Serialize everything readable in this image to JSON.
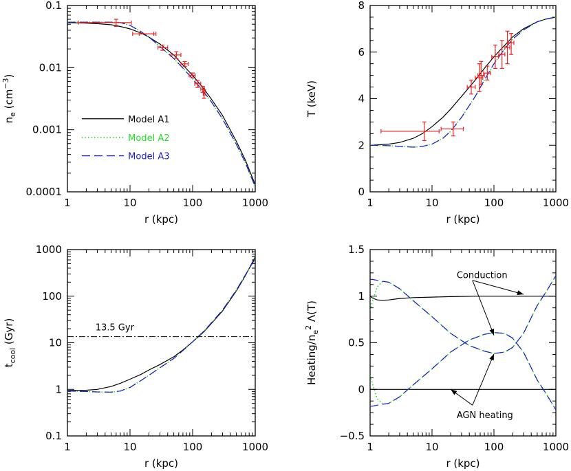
{
  "colors": {
    "model_a1": "#000000",
    "model_a2": "#22dd22",
    "model_a3": "#1a1acc",
    "data_points": "#ee2222"
  },
  "chart_data": [
    {
      "id": "ne",
      "type": "line",
      "xlabel": "r (kpc)",
      "ylabel": "n_e (cm^-3)",
      "xscale": "log",
      "yscale": "log",
      "xlim": [
        1,
        1000
      ],
      "ylim": [
        0.0001,
        0.1
      ],
      "xticks": [
        "1",
        "10",
        "100",
        "1000"
      ],
      "yticks": [
        "0.0001",
        "0.001",
        "0.01",
        "0.1"
      ],
      "legend": {
        "position": "lower-left",
        "entries": [
          "Model A1",
          "Model A2",
          "Model A3"
        ]
      },
      "series": [
        {
          "name": "Model A1",
          "x": [
            1,
            2,
            3,
            5,
            7,
            10,
            15,
            20,
            30,
            50,
            70,
            100,
            150,
            200,
            300,
            500,
            700,
            1000
          ],
          "y": [
            0.053,
            0.052,
            0.051,
            0.049,
            0.046,
            0.042,
            0.036,
            0.031,
            0.024,
            0.016,
            0.011,
            0.0075,
            0.0046,
            0.0031,
            0.0017,
            0.00065,
            0.00032,
            0.00013
          ]
        },
        {
          "name": "Model A2",
          "x": [
            1,
            2,
            3,
            5,
            7,
            10,
            15,
            20,
            30,
            50,
            70,
            100,
            150,
            200,
            300,
            500,
            700,
            1000
          ],
          "y": [
            0.054,
            0.054,
            0.054,
            0.054,
            0.053,
            0.048,
            0.038,
            0.031,
            0.022,
            0.014,
            0.0098,
            0.0066,
            0.0041,
            0.0028,
            0.0015,
            0.00058,
            0.00029,
            0.00012
          ]
        },
        {
          "name": "Model A3",
          "x": [
            1,
            2,
            3,
            5,
            7,
            10,
            15,
            20,
            30,
            50,
            70,
            100,
            150,
            200,
            300,
            500,
            700,
            1000
          ],
          "y": [
            0.054,
            0.054,
            0.054,
            0.054,
            0.053,
            0.048,
            0.038,
            0.031,
            0.022,
            0.014,
            0.0098,
            0.0066,
            0.0041,
            0.0028,
            0.0015,
            0.00058,
            0.00029,
            0.00012
          ]
        }
      ],
      "points": [
        {
          "x": 3.5,
          "xlo": 1.5,
          "xhi": 10.5,
          "y": 0.053,
          "ylo": 0.053,
          "yhi": 0.053
        },
        {
          "x": 6,
          "xlo": 6,
          "xhi": 6,
          "y": 0.053,
          "ylo": 0.046,
          "yhi": 0.06
        },
        {
          "x": 17,
          "xlo": 11,
          "xhi": 26,
          "y": 0.035,
          "ylo": 0.035,
          "yhi": 0.035
        },
        {
          "x": 20,
          "xlo": 14,
          "xhi": 24,
          "y": 0.035,
          "ylo": 0.035,
          "yhi": 0.035
        },
        {
          "x": 33,
          "xlo": 28,
          "xhi": 40,
          "y": 0.021,
          "ylo": 0.019,
          "yhi": 0.023
        },
        {
          "x": 55,
          "xlo": 45,
          "xhi": 65,
          "y": 0.016,
          "ylo": 0.014,
          "yhi": 0.018
        },
        {
          "x": 75,
          "xlo": 65,
          "xhi": 85,
          "y": 0.0115,
          "ylo": 0.0105,
          "yhi": 0.0125
        },
        {
          "x": 100,
          "xlo": 88,
          "xhi": 110,
          "y": 0.0075,
          "ylo": 0.0068,
          "yhi": 0.0082
        },
        {
          "x": 120,
          "xlo": 108,
          "xhi": 135,
          "y": 0.0055,
          "ylo": 0.0048,
          "yhi": 0.0062
        },
        {
          "x": 145,
          "xlo": 135,
          "xhi": 155,
          "y": 0.0045,
          "ylo": 0.004,
          "yhi": 0.005
        },
        {
          "x": 152,
          "xlo": 148,
          "xhi": 158,
          "y": 0.0038,
          "ylo": 0.0032,
          "yhi": 0.0044
        }
      ]
    },
    {
      "id": "temperature",
      "type": "line",
      "xlabel": "r (kpc)",
      "ylabel": "T (keV)",
      "xscale": "log",
      "yscale": "linear",
      "xlim": [
        1,
        1000
      ],
      "ylim": [
        0,
        8
      ],
      "xticks": [
        "1",
        "10",
        "100",
        "1000"
      ],
      "yticks": [
        "0",
        "2",
        "4",
        "6",
        "8"
      ],
      "series": [
        {
          "name": "Model A1",
          "x": [
            1,
            2,
            3,
            5,
            7,
            10,
            15,
            20,
            30,
            50,
            70,
            100,
            150,
            200,
            300,
            500,
            700,
            1000
          ],
          "y": [
            2.0,
            2.05,
            2.12,
            2.3,
            2.5,
            2.8,
            3.2,
            3.55,
            4.1,
            4.8,
            5.3,
            5.8,
            6.3,
            6.65,
            7.0,
            7.3,
            7.42,
            7.5
          ]
        },
        {
          "name": "Model A2",
          "x": [
            1,
            2,
            3,
            5,
            7,
            10,
            15,
            20,
            30,
            50,
            70,
            100,
            150,
            200,
            300,
            500,
            700,
            1000
          ],
          "y": [
            2.0,
            1.98,
            1.95,
            1.92,
            1.95,
            2.05,
            2.3,
            2.6,
            3.2,
            4.1,
            4.8,
            5.5,
            6.15,
            6.55,
            6.95,
            7.3,
            7.42,
            7.5
          ]
        },
        {
          "name": "Model A3",
          "x": [
            1,
            2,
            3,
            5,
            7,
            10,
            15,
            20,
            30,
            50,
            70,
            100,
            150,
            200,
            300,
            500,
            700,
            1000
          ],
          "y": [
            2.0,
            1.98,
            1.95,
            1.92,
            1.95,
            2.05,
            2.3,
            2.6,
            3.2,
            4.1,
            4.8,
            5.5,
            6.15,
            6.55,
            6.95,
            7.3,
            7.42,
            7.5
          ]
        }
      ],
      "points": [
        {
          "x": 7.5,
          "xlo": 1.5,
          "xhi": 13,
          "y": 2.6,
          "ylo": 2.2,
          "yhi": 3.0
        },
        {
          "x": 22,
          "xlo": 14,
          "xhi": 32,
          "y": 2.7,
          "ylo": 2.4,
          "yhi": 3.0
        },
        {
          "x": 43,
          "xlo": 37,
          "xhi": 50,
          "y": 4.5,
          "ylo": 4.2,
          "yhi": 4.8
        },
        {
          "x": 58,
          "xlo": 50,
          "xhi": 66,
          "y": 4.9,
          "ylo": 4.3,
          "yhi": 5.5
        },
        {
          "x": 62,
          "xlo": 55,
          "xhi": 70,
          "y": 5.0,
          "ylo": 4.6,
          "yhi": 5.6
        },
        {
          "x": 78,
          "xlo": 68,
          "xhi": 88,
          "y": 5.1,
          "ylo": 4.8,
          "yhi": 5.4
        },
        {
          "x": 105,
          "xlo": 92,
          "xhi": 118,
          "y": 5.8,
          "ylo": 5.3,
          "yhi": 6.3
        },
        {
          "x": 135,
          "xlo": 120,
          "xhi": 150,
          "y": 5.9,
          "ylo": 5.3,
          "yhi": 6.5
        },
        {
          "x": 165,
          "xlo": 150,
          "xhi": 180,
          "y": 6.2,
          "ylo": 5.5,
          "yhi": 6.9
        },
        {
          "x": 190,
          "xlo": 172,
          "xhi": 210,
          "y": 6.4,
          "ylo": 5.9,
          "yhi": 6.8
        }
      ]
    },
    {
      "id": "tcool",
      "type": "line",
      "xlabel": "r (kpc)",
      "ylabel": "t_cool (Gyr)",
      "xscale": "log",
      "yscale": "log",
      "xlim": [
        1,
        1000
      ],
      "ylim": [
        0.1,
        1000
      ],
      "xticks": [
        "1",
        "10",
        "100",
        "1000"
      ],
      "yticks": [
        "0.1",
        "1",
        "10",
        "100",
        "1000"
      ],
      "hline": {
        "y": 13.5,
        "label": "13.5 Gyr"
      },
      "series": [
        {
          "name": "Model A1",
          "x": [
            1,
            2,
            3,
            5,
            7,
            10,
            15,
            20,
            30,
            50,
            70,
            100,
            150,
            200,
            300,
            500,
            700,
            1000
          ],
          "y": [
            0.95,
            0.96,
            1.0,
            1.15,
            1.35,
            1.65,
            2.1,
            2.6,
            3.4,
            5.0,
            7.0,
            10.5,
            17,
            26,
            48,
            130,
            280,
            700
          ]
        },
        {
          "name": "Model A2",
          "x": [
            1,
            2,
            3,
            5,
            7,
            10,
            15,
            20,
            30,
            50,
            70,
            100,
            150,
            200,
            300,
            500,
            700,
            1000
          ],
          "y": [
            0.92,
            0.9,
            0.88,
            0.87,
            0.92,
            1.1,
            1.55,
            2.0,
            2.9,
            4.6,
            6.8,
            10.5,
            17.5,
            27,
            50,
            135,
            290,
            640
          ]
        },
        {
          "name": "Model A3",
          "x": [
            1,
            2,
            3,
            5,
            7,
            10,
            15,
            20,
            30,
            50,
            70,
            100,
            150,
            200,
            300,
            500,
            700,
            1000
          ],
          "y": [
            0.92,
            0.9,
            0.88,
            0.87,
            0.92,
            1.1,
            1.55,
            2.0,
            2.9,
            4.6,
            6.8,
            10.5,
            17.5,
            27,
            50,
            135,
            290,
            640
          ]
        }
      ]
    },
    {
      "id": "heating",
      "type": "line",
      "xlabel": "r (kpc)",
      "ylabel": "Heating/n_e^2 Λ(T)",
      "xscale": "log",
      "yscale": "linear",
      "xlim": [
        1,
        1000
      ],
      "ylim": [
        -0.5,
        1.5
      ],
      "xticks": [
        "1",
        "10",
        "100",
        "1000"
      ],
      "yticks": [
        "−0.5",
        "0",
        "0.5",
        "1",
        "1.5"
      ],
      "annotations": [
        {
          "text": "Conduction",
          "x": 25,
          "y": 1.23
        },
        {
          "text": "AGN heating",
          "x": 25,
          "y": -0.27
        }
      ],
      "arrows": [
        {
          "from_x": 45,
          "from_y": 1.17,
          "to_x": 300,
          "to_y": 1.02
        },
        {
          "from_x": 45,
          "from_y": 1.17,
          "to_x": 100,
          "to_y": 0.58
        },
        {
          "from_x": 45,
          "from_y": -0.17,
          "to_x": 20,
          "to_y": 0.0
        },
        {
          "from_x": 45,
          "from_y": -0.17,
          "to_x": 100,
          "to_y": 0.38
        }
      ],
      "series": [
        {
          "name": "Model A1 conduction",
          "x": [
            1,
            1.1,
            1.3,
            1.6,
            2,
            3,
            5,
            10,
            20,
            50,
            100,
            200,
            500,
            1000
          ],
          "y": [
            1.0,
            0.98,
            0.96,
            0.955,
            0.96,
            0.975,
            0.985,
            0.99,
            0.995,
            1.0,
            1.0,
            1.0,
            1.0,
            1.0
          ]
        },
        {
          "name": "Model A1 AGN heating",
          "x": [
            1,
            10,
            100,
            1000
          ],
          "y": [
            0.0,
            0.0,
            0.0,
            0.0
          ]
        },
        {
          "name": "Model A2 conduction",
          "x": [
            1,
            1.1,
            1.3,
            1.6,
            2,
            3,
            5,
            10,
            20,
            40,
            70,
            100,
            150,
            200,
            300,
            500,
            700,
            1000
          ],
          "y": [
            0.85,
            0.95,
            1.1,
            1.16,
            1.15,
            1.08,
            0.95,
            0.78,
            0.6,
            0.47,
            0.41,
            0.385,
            0.4,
            0.45,
            0.6,
            0.9,
            1.05,
            1.22
          ]
        },
        {
          "name": "Model A2 AGN heating",
          "x": [
            1,
            1.1,
            1.3,
            1.6,
            2,
            3,
            5,
            10,
            20,
            40,
            70,
            100,
            150,
            200,
            300,
            500,
            700,
            1000
          ],
          "y": [
            0.15,
            0.05,
            -0.1,
            -0.16,
            -0.15,
            -0.08,
            0.05,
            0.22,
            0.4,
            0.53,
            0.59,
            0.61,
            0.6,
            0.55,
            0.4,
            0.1,
            -0.05,
            -0.22
          ]
        },
        {
          "name": "Model A3 conduction",
          "x": [
            1,
            1.1,
            1.3,
            1.6,
            2,
            3,
            5,
            10,
            20,
            40,
            70,
            100,
            150,
            200,
            300,
            500,
            700,
            1000
          ],
          "y": [
            1.18,
            1.18,
            1.17,
            1.16,
            1.15,
            1.08,
            0.95,
            0.78,
            0.6,
            0.47,
            0.41,
            0.385,
            0.4,
            0.45,
            0.6,
            0.9,
            1.05,
            1.22
          ]
        },
        {
          "name": "Model A3 AGN heating",
          "x": [
            1,
            1.1,
            1.3,
            1.6,
            2,
            3,
            5,
            10,
            20,
            40,
            70,
            100,
            150,
            200,
            300,
            500,
            700,
            1000
          ],
          "y": [
            -0.18,
            -0.18,
            -0.17,
            -0.16,
            -0.15,
            -0.08,
            0.05,
            0.22,
            0.4,
            0.53,
            0.59,
            0.61,
            0.6,
            0.55,
            0.4,
            0.1,
            -0.05,
            -0.22
          ]
        }
      ]
    }
  ]
}
